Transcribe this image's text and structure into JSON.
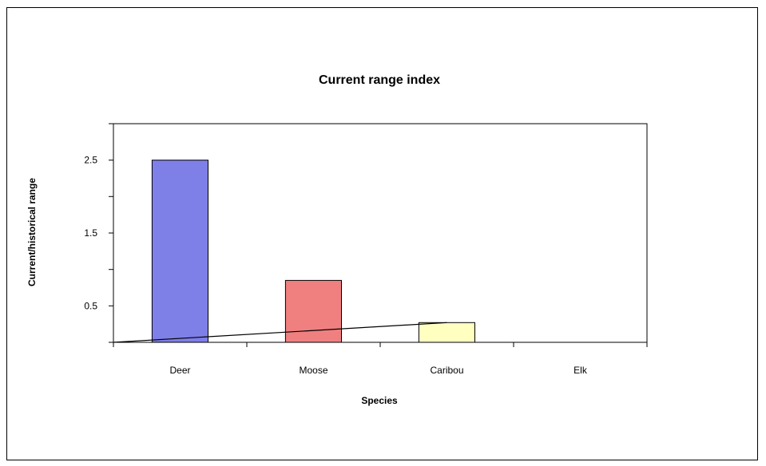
{
  "chart_data": {
    "type": "bar",
    "title": "Current range index",
    "xlabel": "Species",
    "ylabel": "Current/historical range",
    "categories": [
      "Deer",
      "Moose",
      "Caribou",
      "Elk"
    ],
    "values": [
      2.5,
      0.85,
      0.27,
      0
    ],
    "bar_colors": [
      "#7f7fe8",
      "#f08080",
      "#ffffc0",
      "#ffffff"
    ],
    "trend_line": [
      0,
      0.27
    ],
    "ylim": [
      0,
      3
    ],
    "y_ticks": [
      0.5,
      1.5,
      2.5
    ],
    "grid": false,
    "legend": "none"
  }
}
